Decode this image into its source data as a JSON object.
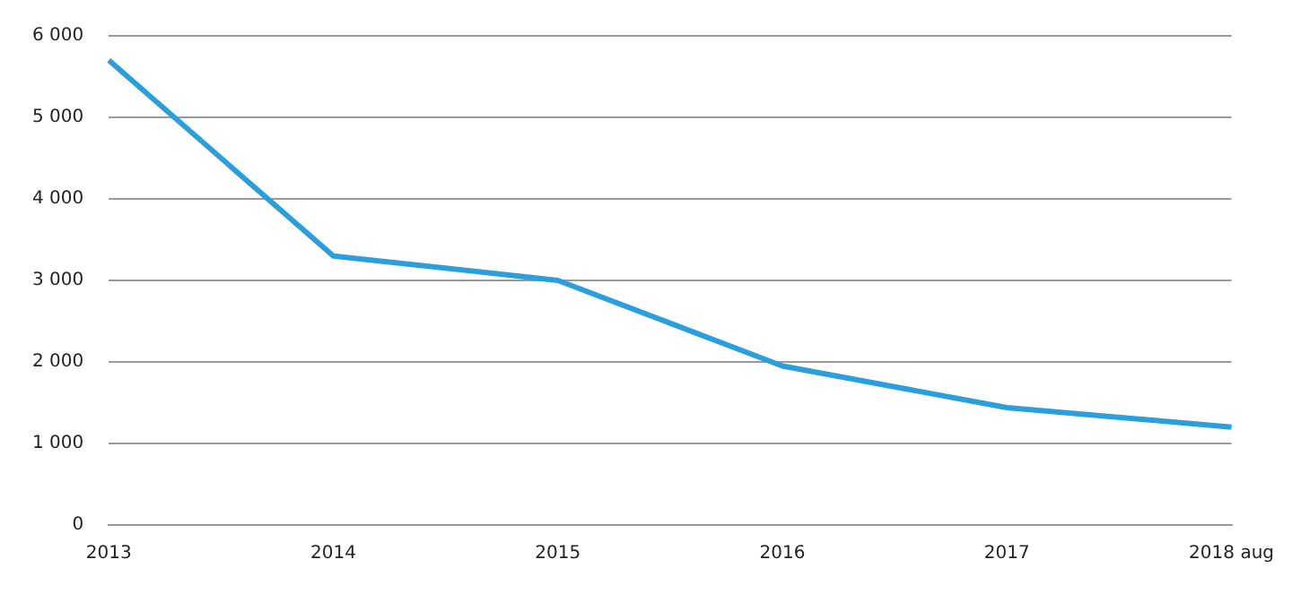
{
  "chart_data": {
    "type": "line",
    "categories": [
      "2013",
      "2014",
      "2015",
      "2016",
      "2017",
      "2018 aug"
    ],
    "series": [
      {
        "color": "#2a9fdb",
        "values": [
          5700,
          3300,
          3000,
          1950,
          1440,
          1200
        ]
      }
    ],
    "ylim": [
      0,
      6000
    ],
    "yticks": [
      {
        "value": 0,
        "label": "0"
      },
      {
        "value": 1000,
        "label": "1 000"
      },
      {
        "value": 2000,
        "label": "2 000"
      },
      {
        "value": 3000,
        "label": "3 000"
      },
      {
        "value": 4000,
        "label": "4 000"
      },
      {
        "value": 5000,
        "label": "5 000"
      },
      {
        "value": 6000,
        "label": "6 000"
      }
    ],
    "grid": "y",
    "legend": false,
    "marker": "none",
    "line_style": "solid"
  }
}
